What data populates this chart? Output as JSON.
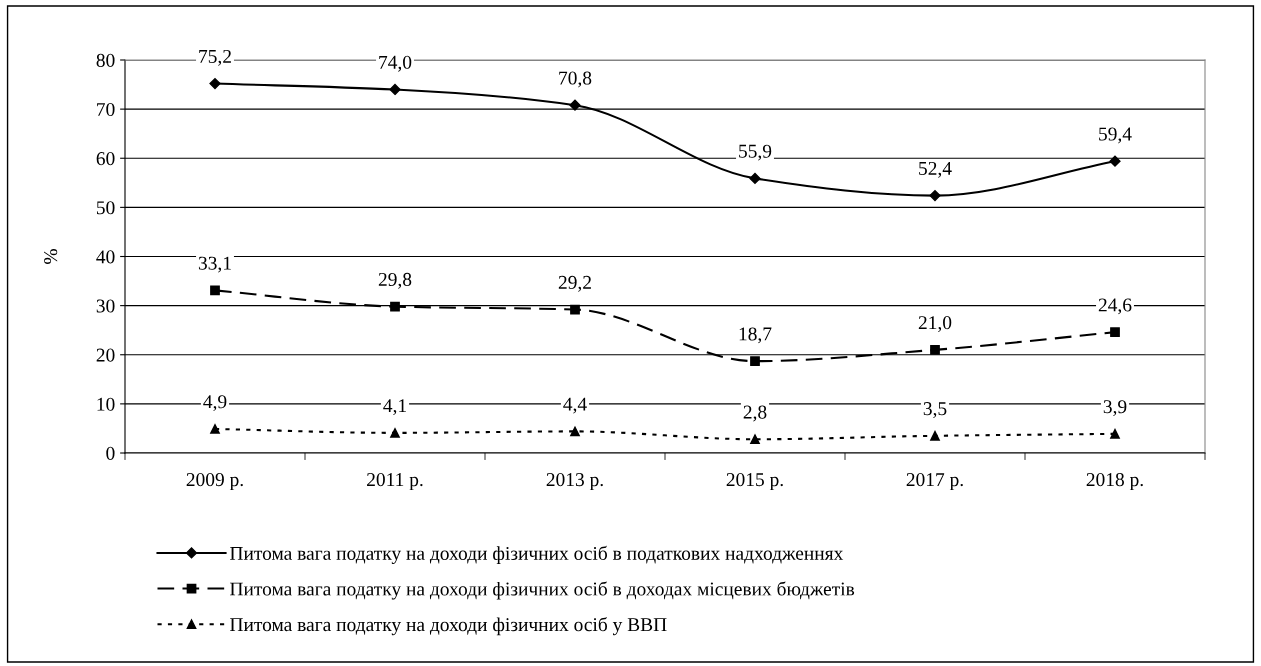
{
  "chart_data": {
    "type": "line",
    "ylabel": "%",
    "categories": [
      "2009 р.",
      "2011 р.",
      "2013 р.",
      "2015 р.",
      "2017 р.",
      "2018 р."
    ],
    "series": [
      {
        "name": "Питома вага податку на доходи фізичних осіб в податкових надходженнях",
        "color": "#000000",
        "values": [
          75.2,
          74.0,
          70.8,
          55.9,
          52.4,
          59.4
        ],
        "value_labels": [
          "75,2",
          "74,0",
          "70,8",
          "55,9",
          "52,4",
          "59,4"
        ],
        "marker": "diamond",
        "line_style": "solid"
      },
      {
        "name": "Питома вага податку на доходи фізичних осіб в доходах місцевих бюджетів",
        "color": "#000000",
        "values": [
          33.1,
          29.8,
          29.2,
          18.7,
          21.0,
          24.6
        ],
        "value_labels": [
          "33,1",
          "29,8",
          "29,2",
          "18,7",
          "21,0",
          "24,6"
        ],
        "marker": "square",
        "line_style": "dashed"
      },
      {
        "name": "Питома вага податку на доходи фізичних осіб у ВВП",
        "color": "#000000",
        "values": [
          4.9,
          4.1,
          4.4,
          2.8,
          3.5,
          3.9
        ],
        "value_labels": [
          "4,9",
          "4,1",
          "4,4",
          "2,8",
          "3,5",
          "3,9"
        ],
        "marker": "triangle",
        "line_style": "dotted"
      }
    ],
    "ylim": [
      0,
      80
    ],
    "yticks": [
      0,
      10,
      20,
      30,
      40,
      50,
      60,
      70,
      80
    ],
    "grid": "y",
    "legend": "bottom"
  }
}
